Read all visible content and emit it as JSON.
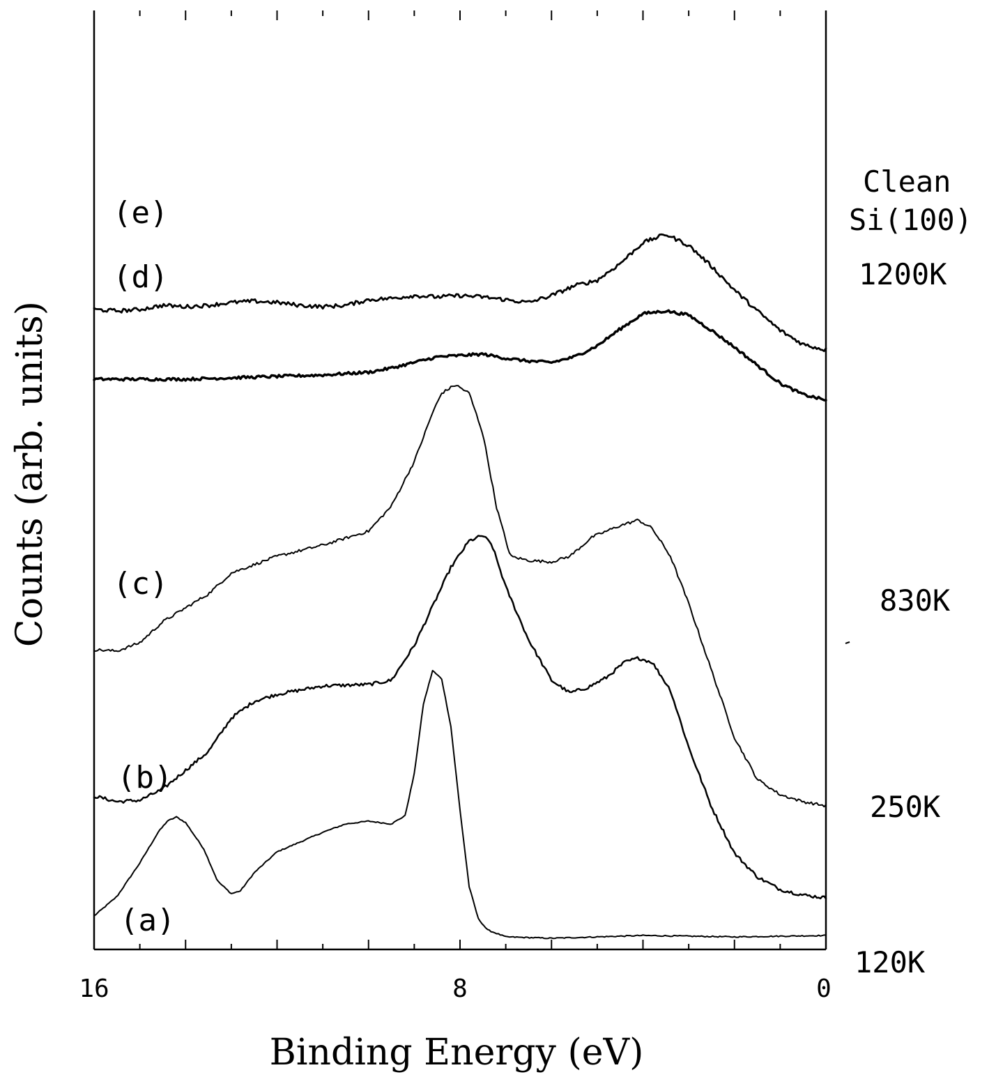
{
  "chart_data": {
    "type": "line",
    "xlabel": "Binding Energy (eV)",
    "ylabel": "Counts (arb. units)",
    "xlim": [
      16,
      0
    ],
    "x_reversed": true,
    "x_ticks_labeled": [
      "16",
      "8",
      "0"
    ],
    "x_ticks_major": [
      16,
      14,
      12,
      10,
      8,
      6,
      4,
      2,
      0
    ],
    "x_ticks_minor": [
      15,
      13,
      11,
      9,
      7,
      5,
      3,
      1
    ],
    "grid": false,
    "legend": "none",
    "y_tick_labels": false,
    "series": [
      {
        "name": "(a)",
        "condition": "120K",
        "points": [
          [
            16.0,
            0.24
          ],
          [
            15.5,
            0.38
          ],
          [
            15.0,
            0.62
          ],
          [
            14.6,
            0.84
          ],
          [
            14.4,
            0.92
          ],
          [
            14.2,
            0.95
          ],
          [
            14.0,
            0.91
          ],
          [
            13.6,
            0.72
          ],
          [
            13.3,
            0.49
          ],
          [
            13.0,
            0.4
          ],
          [
            12.8,
            0.42
          ],
          [
            12.5,
            0.55
          ],
          [
            12.0,
            0.7
          ],
          [
            11.0,
            0.84
          ],
          [
            10.5,
            0.9
          ],
          [
            10.0,
            0.92
          ],
          [
            9.5,
            0.9
          ],
          [
            9.2,
            0.96
          ],
          [
            9.0,
            1.26
          ],
          [
            8.8,
            1.76
          ],
          [
            8.6,
            2.0
          ],
          [
            8.4,
            1.94
          ],
          [
            8.2,
            1.6
          ],
          [
            8.0,
            1.0
          ],
          [
            7.8,
            0.45
          ],
          [
            7.6,
            0.22
          ],
          [
            7.4,
            0.14
          ],
          [
            7.0,
            0.09
          ],
          [
            6.0,
            0.08
          ],
          [
            4.0,
            0.1
          ],
          [
            2.0,
            0.09
          ],
          [
            0.0,
            0.1
          ]
        ]
      },
      {
        "name": "(b)",
        "condition": "250K",
        "points": [
          [
            16.0,
            1.1
          ],
          [
            15.5,
            1.06
          ],
          [
            15.0,
            1.07
          ],
          [
            14.5,
            1.15
          ],
          [
            13.5,
            1.42
          ],
          [
            13.0,
            1.66
          ],
          [
            12.5,
            1.78
          ],
          [
            12.0,
            1.83
          ],
          [
            11.0,
            1.89
          ],
          [
            10.0,
            1.9
          ],
          [
            9.5,
            1.93
          ],
          [
            9.0,
            2.18
          ],
          [
            8.6,
            2.46
          ],
          [
            8.2,
            2.74
          ],
          [
            7.8,
            2.93
          ],
          [
            7.5,
            2.97
          ],
          [
            7.3,
            2.9
          ],
          [
            7.0,
            2.6
          ],
          [
            6.5,
            2.22
          ],
          [
            6.0,
            1.93
          ],
          [
            5.6,
            1.84
          ],
          [
            5.2,
            1.88
          ],
          [
            4.8,
            1.95
          ],
          [
            4.4,
            2.06
          ],
          [
            4.1,
            2.09
          ],
          [
            3.8,
            2.06
          ],
          [
            3.4,
            1.86
          ],
          [
            3.0,
            1.45
          ],
          [
            2.5,
            1.02
          ],
          [
            2.0,
            0.69
          ],
          [
            1.5,
            0.52
          ],
          [
            1.0,
            0.43
          ],
          [
            0.5,
            0.39
          ],
          [
            0.0,
            0.37
          ]
        ]
      },
      {
        "name": "(c)",
        "condition": "830K",
        "points": [
          [
            16.0,
            2.15
          ],
          [
            15.5,
            2.14
          ],
          [
            15.0,
            2.2
          ],
          [
            14.5,
            2.35
          ],
          [
            13.5,
            2.55
          ],
          [
            13.0,
            2.7
          ],
          [
            12.5,
            2.76
          ],
          [
            12.0,
            2.82
          ],
          [
            11.0,
            2.9
          ],
          [
            10.0,
            3.0
          ],
          [
            9.5,
            3.18
          ],
          [
            9.0,
            3.5
          ],
          [
            8.6,
            3.85
          ],
          [
            8.4,
            3.99
          ],
          [
            8.1,
            4.05
          ],
          [
            7.8,
            3.99
          ],
          [
            7.5,
            3.7
          ],
          [
            7.2,
            3.17
          ],
          [
            6.9,
            2.82
          ],
          [
            6.5,
            2.79
          ],
          [
            6.0,
            2.78
          ],
          [
            5.6,
            2.82
          ],
          [
            5.1,
            2.96
          ],
          [
            4.5,
            3.04
          ],
          [
            4.1,
            3.08
          ],
          [
            3.8,
            3.02
          ],
          [
            3.4,
            2.82
          ],
          [
            3.0,
            2.48
          ],
          [
            2.5,
            2.0
          ],
          [
            2.0,
            1.52
          ],
          [
            1.5,
            1.22
          ],
          [
            1.0,
            1.11
          ],
          [
            0.5,
            1.06
          ],
          [
            0.0,
            1.03
          ]
        ]
      },
      {
        "name": "(d)",
        "condition": "1200K",
        "points": [
          [
            16.0,
            4.09
          ],
          [
            15.0,
            4.09
          ],
          [
            14.0,
            4.09
          ],
          [
            13.0,
            4.1
          ],
          [
            12.0,
            4.11
          ],
          [
            11.0,
            4.12
          ],
          [
            10.0,
            4.14
          ],
          [
            9.5,
            4.17
          ],
          [
            9.0,
            4.21
          ],
          [
            8.5,
            4.25
          ],
          [
            8.0,
            4.26
          ],
          [
            7.5,
            4.27
          ],
          [
            7.0,
            4.24
          ],
          [
            6.5,
            4.22
          ],
          [
            6.0,
            4.21
          ],
          [
            5.5,
            4.25
          ],
          [
            5.0,
            4.33
          ],
          [
            4.5,
            4.45
          ],
          [
            4.0,
            4.56
          ],
          [
            3.5,
            4.58
          ],
          [
            3.0,
            4.55
          ],
          [
            2.5,
            4.44
          ],
          [
            2.0,
            4.32
          ],
          [
            1.5,
            4.19
          ],
          [
            1.0,
            4.06
          ],
          [
            0.5,
            3.98
          ],
          [
            0.0,
            3.94
          ]
        ]
      },
      {
        "name": "(e)",
        "condition": "Clean Si(100)",
        "points": [
          [
            16.0,
            4.59
          ],
          [
            15.5,
            4.58
          ],
          [
            15.0,
            4.59
          ],
          [
            14.5,
            4.62
          ],
          [
            14.0,
            4.61
          ],
          [
            13.5,
            4.62
          ],
          [
            13.0,
            4.64
          ],
          [
            12.5,
            4.65
          ],
          [
            12.0,
            4.64
          ],
          [
            11.5,
            4.62
          ],
          [
            11.0,
            4.61
          ],
          [
            10.5,
            4.62
          ],
          [
            10.0,
            4.66
          ],
          [
            9.5,
            4.67
          ],
          [
            9.0,
            4.69
          ],
          [
            8.5,
            4.68
          ],
          [
            8.0,
            4.69
          ],
          [
            7.5,
            4.68
          ],
          [
            7.0,
            4.66
          ],
          [
            6.5,
            4.64
          ],
          [
            6.0,
            4.69
          ],
          [
            5.5,
            4.76
          ],
          [
            5.0,
            4.8
          ],
          [
            4.5,
            4.92
          ],
          [
            4.0,
            5.07
          ],
          [
            3.5,
            5.13
          ],
          [
            3.0,
            5.05
          ],
          [
            2.5,
            4.9
          ],
          [
            2.0,
            4.73
          ],
          [
            1.5,
            4.58
          ],
          [
            1.0,
            4.44
          ],
          [
            0.5,
            4.34
          ],
          [
            0.0,
            4.3
          ]
        ]
      }
    ],
    "curve_labels": [
      "(e)",
      "(d)",
      "(c)",
      "(b)",
      "(a)"
    ],
    "temperature_labels": {
      "e_line1": "Clean",
      "e_line2": "Si(100)",
      "d": "1200K",
      "c": "830K",
      "b": "250K",
      "a": "120K"
    }
  }
}
